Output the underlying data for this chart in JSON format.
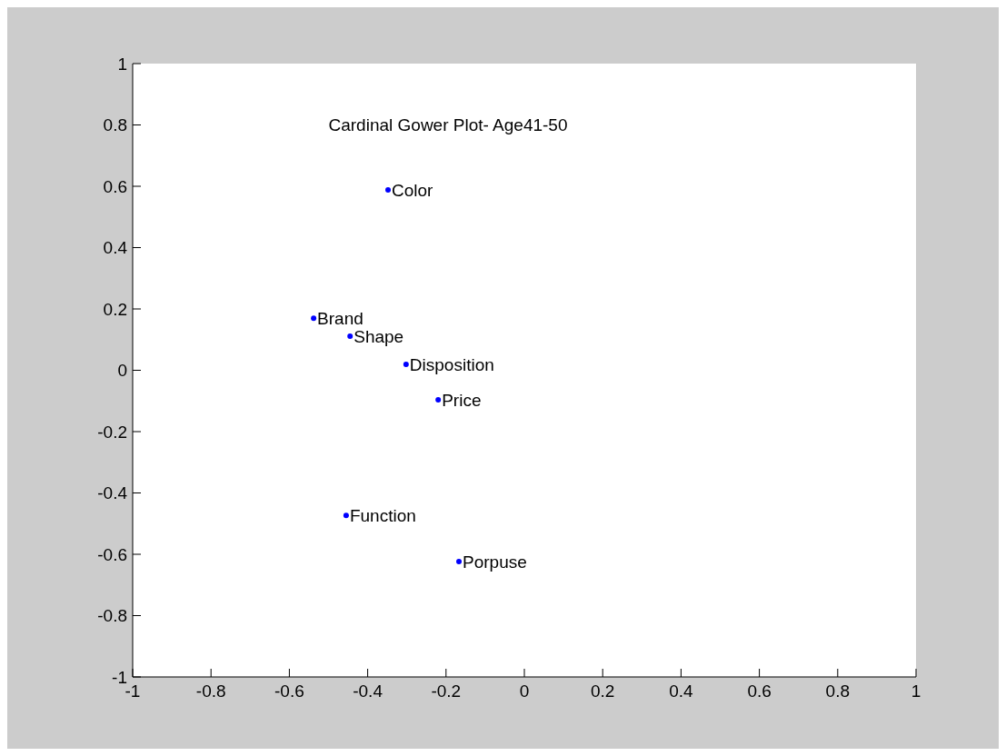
{
  "chart_data": {
    "type": "scatter",
    "title": "Cardinal Gower Plot- Age41-50",
    "x": [
      -0.348,
      -0.538,
      -0.445,
      -0.302,
      -0.22,
      -0.455,
      -0.167
    ],
    "series": [
      {
        "color": "#0000ff",
        "values": [
          0.588,
          0.17,
          0.111,
          0.019,
          -0.096,
          -0.473,
          -0.624
        ]
      }
    ],
    "marker": "circle",
    "annotations": [
      {
        "text": "Color",
        "x": -0.348,
        "y": 0.588
      },
      {
        "text": "Brand",
        "x": -0.538,
        "y": 0.17
      },
      {
        "text": "Shape",
        "x": -0.445,
        "y": 0.111
      },
      {
        "text": "Disposition",
        "x": -0.302,
        "y": 0.019
      },
      {
        "text": "Price",
        "x": -0.22,
        "y": -0.096
      },
      {
        "text": "Function",
        "x": -0.455,
        "y": -0.473
      },
      {
        "text": "Porpuse",
        "x": -0.167,
        "y": -0.624
      }
    ],
    "xlim": [
      -1,
      1
    ],
    "ylim": [
      -1,
      1
    ],
    "xticks": [
      -1,
      -0.8,
      -0.6,
      -0.4,
      -0.2,
      0,
      0.2,
      0.4,
      0.6,
      0.8,
      1
    ],
    "yticks": [
      -1,
      -0.8,
      -0.6,
      -0.4,
      -0.2,
      0,
      0.2,
      0.4,
      0.6,
      0.8,
      1
    ],
    "grid": false
  }
}
